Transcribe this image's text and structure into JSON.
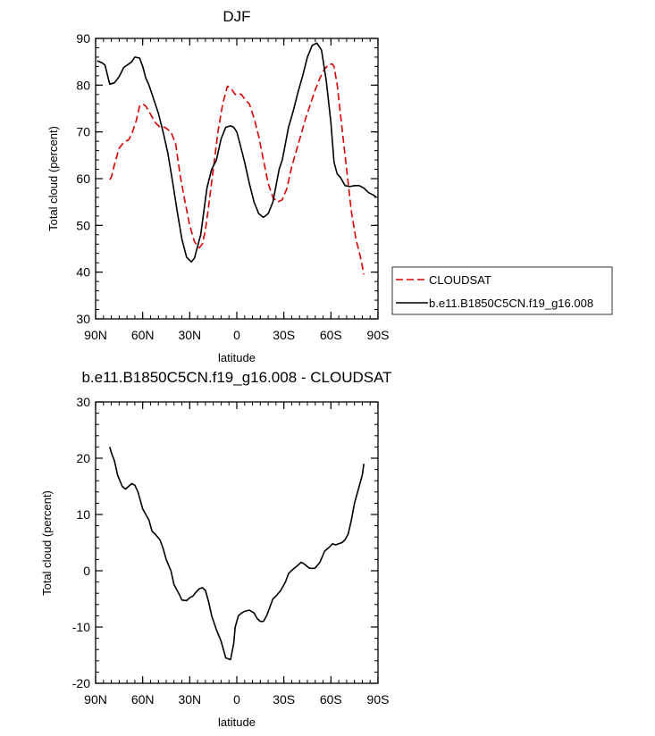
{
  "chart_data": [
    {
      "type": "line",
      "title": "DJF",
      "xlabel": "latitude",
      "ylabel": "Total cloud (percent)",
      "xlim": [
        90,
        -90
      ],
      "ylim": [
        30,
        90
      ],
      "yticks": [
        30,
        40,
        50,
        60,
        70,
        80,
        90
      ],
      "xticks": [
        {
          "value": 90,
          "label": "90N"
        },
        {
          "value": 60,
          "label": "60N"
        },
        {
          "value": 30,
          "label": "30N"
        },
        {
          "value": 0,
          "label": "0"
        },
        {
          "value": -30,
          "label": "30S"
        },
        {
          "value": -60,
          "label": "60S"
        },
        {
          "value": -90,
          "label": "90S"
        }
      ],
      "legend_position": "right",
      "series": [
        {
          "name": "CLOUDSAT",
          "color": "#dd0000",
          "dash": "dashed",
          "x": [
            81,
            80,
            78,
            75,
            72,
            69,
            67,
            64,
            62,
            60,
            58,
            55,
            52,
            49,
            46,
            44,
            42,
            39,
            36,
            33,
            30,
            27,
            24,
            22,
            20,
            18,
            15,
            12,
            9,
            6,
            3,
            1,
            -1,
            -3,
            -5,
            -8,
            -11,
            -14,
            -17,
            -20,
            -23,
            -26,
            -29,
            -32,
            -35,
            -38,
            -41,
            -44,
            -47,
            -50,
            -53,
            -56,
            -59,
            -61,
            -62,
            -64,
            -67,
            -70,
            -73,
            -76,
            -79,
            -81
          ],
          "y": [
            59.8,
            60.3,
            63,
            66.5,
            67.8,
            68.3,
            69.5,
            72.5,
            75.5,
            76,
            75.5,
            73.8,
            72,
            71,
            71,
            70.5,
            70,
            67.5,
            60.5,
            55,
            50,
            46.5,
            45.2,
            46,
            49,
            54,
            62,
            70,
            76,
            79.8,
            79,
            78,
            78.2,
            78,
            77,
            76,
            73,
            69,
            64,
            59,
            56,
            55,
            55.5,
            58,
            62.5,
            66,
            69.5,
            73,
            76,
            79,
            81.5,
            83.5,
            84.5,
            84.5,
            84,
            80,
            71,
            62,
            53,
            47,
            43,
            39.5
          ]
        },
        {
          "name": "b.e11.B1850C5CN.f19_g16.008",
          "color": "#000000",
          "dash": "solid",
          "x": [
            89,
            86,
            84,
            81,
            78,
            75,
            72,
            69,
            67,
            65,
            62,
            60,
            58,
            56,
            53,
            50,
            47,
            44,
            41,
            38,
            35,
            32,
            29,
            27,
            25,
            23,
            21,
            19,
            16,
            13,
            10,
            7,
            4,
            2,
            0,
            -2,
            -5,
            -8,
            -11,
            -14,
            -17,
            -20,
            -23,
            -25,
            -27,
            -29,
            -31,
            -33,
            -36,
            -39,
            -42,
            -45,
            -48,
            -51,
            -54,
            -57,
            -60,
            -62,
            -64,
            -66,
            -69,
            -72,
            -75,
            -78,
            -81,
            -84,
            -87,
            -89
          ],
          "y": [
            85.2,
            84.8,
            84.3,
            80.2,
            80.5,
            81.8,
            83.8,
            84.5,
            85,
            86,
            85.8,
            84,
            81.5,
            80,
            77,
            74,
            70,
            65.5,
            59.5,
            53,
            47,
            43.2,
            42.2,
            43,
            45.5,
            48,
            53,
            58,
            62,
            64,
            68.5,
            71,
            71.3,
            71,
            70,
            67.5,
            63.5,
            59,
            55,
            52.5,
            51.7,
            52.5,
            55,
            58.5,
            62,
            64,
            67.5,
            71,
            74.5,
            78.5,
            82,
            86,
            88.5,
            89,
            87.5,
            81,
            72,
            63.5,
            61,
            60.3,
            58.5,
            58.3,
            58.5,
            58.5,
            58,
            57,
            56.5,
            56
          ]
        }
      ]
    },
    {
      "type": "line",
      "title": "b.e11.B1850C5CN.f19_g16.008 - CLOUDSAT",
      "xlabel": "latitude",
      "ylabel": "Total cloud (percent)",
      "xlim": [
        90,
        -90
      ],
      "ylim": [
        -20,
        30
      ],
      "yticks": [
        -20,
        -10,
        0,
        10,
        20,
        30
      ],
      "xticks": [
        {
          "value": 90,
          "label": "90N"
        },
        {
          "value": 60,
          "label": "60N"
        },
        {
          "value": 30,
          "label": "30N"
        },
        {
          "value": 0,
          "label": "0"
        },
        {
          "value": -30,
          "label": "30S"
        },
        {
          "value": -60,
          "label": "60S"
        },
        {
          "value": -90,
          "label": "90S"
        }
      ],
      "series": [
        {
          "color": "#000000",
          "dash": "solid",
          "x": [
            81,
            80,
            78,
            76,
            73,
            71,
            69,
            67,
            65,
            63,
            60,
            58,
            56,
            54,
            52,
            49,
            47,
            45,
            42,
            40,
            37,
            35,
            32,
            30,
            28,
            26,
            24,
            22,
            20,
            18,
            16,
            13,
            10,
            7,
            4,
            2,
            1,
            -1,
            -3,
            -5,
            -8,
            -11,
            -13,
            -15,
            -17,
            -19,
            -21,
            -23,
            -25,
            -28,
            -31,
            -33,
            -36,
            -39,
            -41,
            -43,
            -46,
            -48,
            -50,
            -53,
            -56,
            -59,
            -61,
            -63,
            -65,
            -67,
            -69,
            -71,
            -73,
            -75,
            -77,
            -80,
            -81
          ],
          "y": [
            22,
            21,
            19.5,
            17,
            15,
            14.5,
            15,
            15.5,
            15.2,
            14,
            11,
            10,
            9,
            7,
            6.5,
            5.5,
            4,
            2,
            0,
            -2.5,
            -4,
            -5.2,
            -5.3,
            -4.8,
            -4.5,
            -3.8,
            -3.2,
            -3,
            -3.5,
            -5.5,
            -8,
            -10.5,
            -12.5,
            -15.5,
            -15.8,
            -13,
            -10,
            -8,
            -7.5,
            -7.2,
            -7,
            -7.5,
            -8.5,
            -9,
            -9,
            -8,
            -6.5,
            -5,
            -4.5,
            -3.5,
            -2,
            -0.5,
            0.3,
            1,
            1.5,
            1.2,
            0.5,
            0.4,
            0.5,
            1.5,
            3.5,
            4.2,
            4.8,
            4.6,
            4.8,
            5,
            5.5,
            6.5,
            9,
            12,
            14,
            17,
            19
          ]
        }
      ]
    }
  ]
}
